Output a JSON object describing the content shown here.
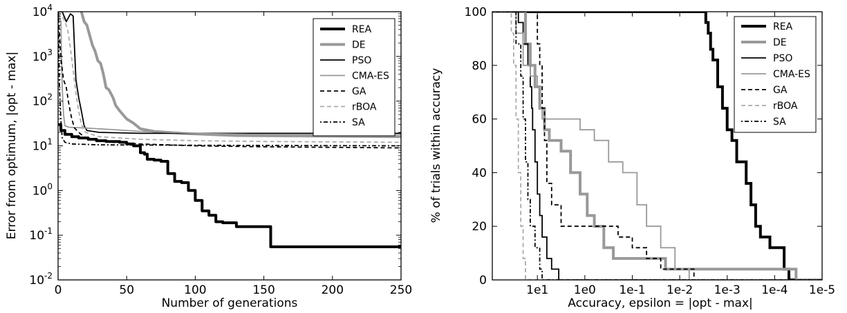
{
  "chart_data": [
    {
      "type": "line",
      "xlabel": "Number of generations",
      "ylabel": "Error from optimum, |opt - max|",
      "xlim": [
        0,
        250
      ],
      "ylim": [
        0.01,
        10000
      ],
      "yscale": "log",
      "xticks": [
        {
          "v": 0,
          "label": "0"
        },
        {
          "v": 50,
          "label": "50"
        },
        {
          "v": 100,
          "label": "100"
        },
        {
          "v": 150,
          "label": "150"
        },
        {
          "v": 200,
          "label": "200"
        },
        {
          "v": 250,
          "label": "250"
        }
      ],
      "yticks": [
        {
          "v": 0.01,
          "base": "10",
          "exp": "-2"
        },
        {
          "v": 0.1,
          "base": "10",
          "exp": "-1"
        },
        {
          "v": 1,
          "base": "10",
          "exp": "0"
        },
        {
          "v": 10,
          "base": "10",
          "exp": "1"
        },
        {
          "v": 100,
          "base": "10",
          "exp": "2"
        },
        {
          "v": 1000,
          "base": "10",
          "exp": "3"
        },
        {
          "v": 10000,
          "base": "10",
          "exp": "4"
        }
      ],
      "legend_position": "top-right",
      "series": [
        {
          "name": "REA",
          "color": "#000000",
          "width": 4,
          "dash": "",
          "step": true,
          "points": [
            [
              0,
              30
            ],
            [
              2,
              22
            ],
            [
              5,
              18
            ],
            [
              10,
              16
            ],
            [
              15,
              15
            ],
            [
              22,
              14
            ],
            [
              28,
              13
            ],
            [
              35,
              12.5
            ],
            [
              45,
              12
            ],
            [
              50,
              11
            ],
            [
              55,
              10
            ],
            [
              60,
              7
            ],
            [
              63,
              6.5
            ],
            [
              65,
              5
            ],
            [
              70,
              4.8
            ],
            [
              75,
              4.5
            ],
            [
              80,
              2.4
            ],
            [
              85,
              1.6
            ],
            [
              90,
              1.5
            ],
            [
              95,
              1.0
            ],
            [
              100,
              0.6
            ],
            [
              105,
              0.35
            ],
            [
              110,
              0.28
            ],
            [
              115,
              0.2
            ],
            [
              120,
              0.19
            ],
            [
              130,
              0.155
            ],
            [
              150,
              0.155
            ],
            [
              155,
              0.055
            ],
            [
              250,
              0.055
            ]
          ]
        },
        {
          "name": "DE",
          "color": "#999999",
          "width": 4,
          "dash": "",
          "step": false,
          "points": [
            [
              17,
              10000
            ],
            [
              19,
              6000
            ],
            [
              21,
              5000
            ],
            [
              23,
              3000
            ],
            [
              25,
              1800
            ],
            [
              27,
              1300
            ],
            [
              29,
              800
            ],
            [
              31,
              700
            ],
            [
              33,
              400
            ],
            [
              35,
              200
            ],
            [
              37,
              180
            ],
            [
              40,
              120
            ],
            [
              42,
              80
            ],
            [
              45,
              60
            ],
            [
              50,
              40
            ],
            [
              55,
              32
            ],
            [
              60,
              24
            ],
            [
              70,
              21
            ],
            [
              90,
              19
            ],
            [
              130,
              17
            ],
            [
              190,
              16.5
            ],
            [
              250,
              16
            ]
          ]
        },
        {
          "name": "PSO",
          "color": "#000000",
          "width": 1.8,
          "dash": "",
          "step": false,
          "points": [
            [
              0,
              10000
            ],
            [
              3,
              10000
            ],
            [
              6,
              6000
            ],
            [
              9,
              9000
            ],
            [
              11,
              8000
            ],
            [
              12,
              1500
            ],
            [
              13,
              300
            ],
            [
              15,
              120
            ],
            [
              17,
              60
            ],
            [
              19,
              28
            ],
            [
              21,
              22
            ],
            [
              30,
              20
            ],
            [
              60,
              19
            ],
            [
              250,
              19
            ]
          ]
        },
        {
          "name": "CMA-ES",
          "color": "#999999",
          "width": 1.8,
          "dash": "",
          "step": false,
          "points": [
            [
              0,
              10000
            ],
            [
              2,
              6000
            ],
            [
              3,
              200
            ],
            [
              4,
              50
            ],
            [
              5,
              28
            ],
            [
              8,
              26
            ],
            [
              20,
              25
            ],
            [
              40,
              23
            ],
            [
              60,
              21
            ],
            [
              80,
              20
            ],
            [
              100,
              19
            ],
            [
              140,
              18
            ],
            [
              250,
              18
            ]
          ]
        },
        {
          "name": "GA",
          "color": "#000000",
          "width": 1.8,
          "dash": "6,4",
          "step": false,
          "points": [
            [
              0,
              10000
            ],
            [
              1,
              3000
            ],
            [
              2,
              900
            ],
            [
              4,
              300
            ],
            [
              6,
              200
            ],
            [
              8,
              80
            ],
            [
              10,
              40
            ],
            [
              12,
              25
            ],
            [
              15,
              20
            ],
            [
              20,
              15
            ],
            [
              30,
              13
            ],
            [
              40,
              12
            ],
            [
              60,
              11
            ],
            [
              100,
              10
            ],
            [
              150,
              9.5
            ],
            [
              250,
              9
            ]
          ]
        },
        {
          "name": "rBOA",
          "color": "#aaaaaa",
          "width": 1.8,
          "dash": "6,4",
          "step": false,
          "points": [
            [
              0,
              10000
            ],
            [
              3,
              8000
            ],
            [
              5,
              6000
            ],
            [
              7,
              4000
            ],
            [
              9,
              1500
            ],
            [
              11,
              500
            ],
            [
              13,
              150
            ],
            [
              15,
              60
            ],
            [
              17,
              30
            ],
            [
              20,
              20
            ],
            [
              30,
              16
            ],
            [
              60,
              14
            ],
            [
              100,
              13
            ],
            [
              150,
              12.5
            ],
            [
              250,
              12
            ]
          ]
        },
        {
          "name": "SA",
          "color": "#000000",
          "width": 1.8,
          "dash": "2,3,6,3",
          "step": false,
          "points": [
            [
              0,
              10000
            ],
            [
              1,
              200
            ],
            [
              2,
              40
            ],
            [
              3,
              15
            ],
            [
              5,
              12
            ],
            [
              10,
              11
            ],
            [
              30,
              10.5
            ],
            [
              100,
              10.3
            ],
            [
              250,
              10
            ]
          ]
        }
      ]
    },
    {
      "type": "line",
      "xlabel": "Accuracy, epsilon = |opt - max|",
      "ylabel": "% of trials within accuracy",
      "xscale": "log-reversed",
      "ylim": [
        0,
        100
      ],
      "xticks": [
        {
          "label": "1e1"
        },
        {
          "label": "1e0"
        },
        {
          "label": "1e-1"
        },
        {
          "label": "1e-2"
        },
        {
          "label": "1e-3"
        },
        {
          "label": "1e-4"
        },
        {
          "label": "1e-5"
        }
      ],
      "yticks": [
        {
          "v": 0,
          "label": "0"
        },
        {
          "v": 20,
          "label": "20"
        },
        {
          "v": 40,
          "label": "40"
        },
        {
          "v": 60,
          "label": "60"
        },
        {
          "v": 80,
          "label": "80"
        },
        {
          "v": 100,
          "label": "100"
        }
      ],
      "legend_position": "top-right",
      "series": [
        {
          "name": "REA",
          "color": "#000000",
          "width": 4,
          "dash": "",
          "points": [
            [
              -2.5,
              100
            ],
            [
              -2.55,
              96
            ],
            [
              -2.6,
              92
            ],
            [
              -2.65,
              86
            ],
            [
              -2.7,
              82
            ],
            [
              -2.8,
              72
            ],
            [
              -2.9,
              64
            ],
            [
              -3.0,
              56
            ],
            [
              -3.1,
              52
            ],
            [
              -3.2,
              44
            ],
            [
              -3.4,
              36
            ],
            [
              -3.5,
              28
            ],
            [
              -3.6,
              20
            ],
            [
              -3.7,
              16
            ],
            [
              -3.9,
              12
            ],
            [
              -4.2,
              4
            ],
            [
              -4.3,
              0
            ]
          ]
        },
        {
          "name": "DE",
          "color": "#999999",
          "width": 4,
          "dash": "",
          "points": [
            [
              1.35,
              100
            ],
            [
              1.25,
              88
            ],
            [
              1.15,
              80
            ],
            [
              1.05,
              72
            ],
            [
              0.95,
              64
            ],
            [
              0.85,
              56
            ],
            [
              0.75,
              52
            ],
            [
              0.5,
              48
            ],
            [
              0.3,
              40
            ],
            [
              0.1,
              32
            ],
            [
              -0.05,
              24
            ],
            [
              -0.2,
              20
            ],
            [
              -0.4,
              12
            ],
            [
              -0.6,
              8
            ],
            [
              -1.5,
              8
            ],
            [
              -1.7,
              4
            ],
            [
              -4.4,
              4
            ],
            [
              -4.45,
              0
            ]
          ]
        },
        {
          "name": "PSO",
          "color": "#000000",
          "width": 1.8,
          "dash": "",
          "points": [
            [
              1.5,
              100
            ],
            [
              1.4,
              96
            ],
            [
              1.3,
              88
            ],
            [
              1.2,
              80
            ],
            [
              1.15,
              72
            ],
            [
              1.12,
              64
            ],
            [
              1.1,
              56
            ],
            [
              1.05,
              44
            ],
            [
              1.0,
              32
            ],
            [
              0.95,
              24
            ],
            [
              0.9,
              16
            ],
            [
              0.8,
              8
            ],
            [
              0.7,
              4
            ],
            [
              0.55,
              0
            ]
          ]
        },
        {
          "name": "CMA-ES",
          "color": "#999999",
          "width": 1.8,
          "dash": "",
          "points": [
            [
              1.6,
              100
            ],
            [
              1.45,
              92
            ],
            [
              1.3,
              80
            ],
            [
              1.15,
              76
            ],
            [
              1.0,
              72
            ],
            [
              0.95,
              64
            ],
            [
              0.9,
              60
            ],
            [
              0.3,
              60
            ],
            [
              0.1,
              56
            ],
            [
              -0.2,
              52
            ],
            [
              -0.5,
              44
            ],
            [
              -0.8,
              40
            ],
            [
              -1.1,
              28
            ],
            [
              -1.3,
              20
            ],
            [
              -1.6,
              12
            ],
            [
              -1.9,
              4
            ],
            [
              -2.2,
              0
            ]
          ]
        },
        {
          "name": "GA",
          "color": "#000000",
          "width": 1.8,
          "dash": "6,4",
          "points": [
            [
              1.1,
              100
            ],
            [
              1.0,
              88
            ],
            [
              0.95,
              80
            ],
            [
              0.9,
              64
            ],
            [
              0.85,
              52
            ],
            [
              0.8,
              36
            ],
            [
              0.7,
              28
            ],
            [
              0.5,
              20
            ],
            [
              0.3,
              20
            ],
            [
              -0.5,
              20
            ],
            [
              -0.7,
              16
            ],
            [
              -1.0,
              12
            ],
            [
              -1.3,
              8
            ],
            [
              -1.6,
              4
            ],
            [
              -2.3,
              0
            ]
          ]
        },
        {
          "name": "rBOA",
          "color": "#aaaaaa",
          "width": 1.8,
          "dash": "6,4",
          "points": [
            [
              1.6,
              100
            ],
            [
              1.55,
              92
            ],
            [
              1.5,
              80
            ],
            [
              1.45,
              60
            ],
            [
              1.4,
              40
            ],
            [
              1.35,
              20
            ],
            [
              1.3,
              8
            ],
            [
              1.25,
              0
            ]
          ]
        },
        {
          "name": "SA",
          "color": "#000000",
          "width": 1.8,
          "dash": "2,3,6,3",
          "points": [
            [
              1.55,
              100
            ],
            [
              1.45,
              88
            ],
            [
              1.35,
              76
            ],
            [
              1.3,
              60
            ],
            [
              1.25,
              44
            ],
            [
              1.2,
              30
            ],
            [
              1.15,
              20
            ],
            [
              1.05,
              12
            ],
            [
              0.95,
              4
            ],
            [
              0.9,
              0
            ]
          ]
        }
      ]
    }
  ]
}
